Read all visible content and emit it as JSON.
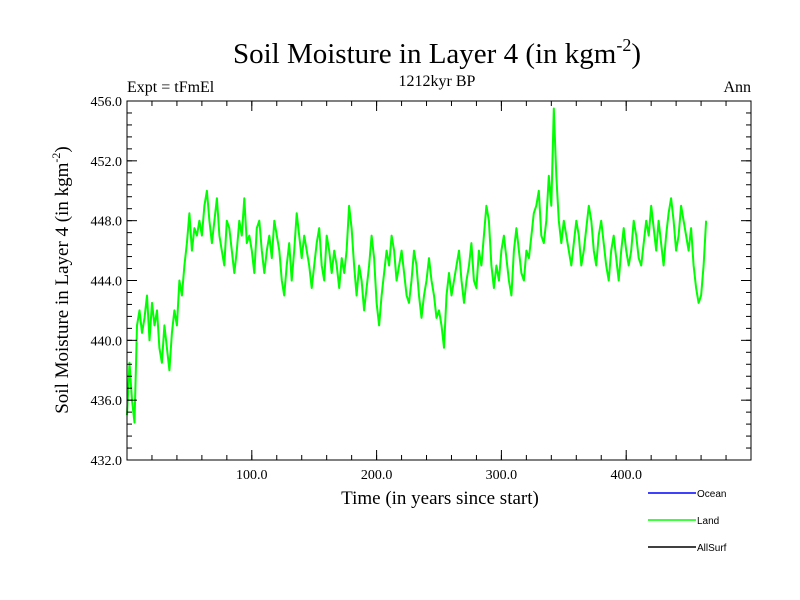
{
  "chart_data": {
    "type": "line",
    "title": "Soil Moisture in Layer 4 (in kgm",
    "title_sup": "-2",
    "title_close": ")",
    "subtitle": "1212kyr BP",
    "left_label": "Expt = tFmEl",
    "right_label": "Ann",
    "xlabel": "Time (in years since start)",
    "ylabel": "Soil Moisture in Layer 4 (in kgm",
    "ylabel_sup": "-2",
    "ylabel_close": ")",
    "xlim": [
      0,
      500
    ],
    "ylim": [
      432,
      456
    ],
    "x_ticks": [
      100,
      200,
      300,
      400
    ],
    "x_tick_labels": [
      "100.0",
      "200.0",
      "300.0",
      "400.0"
    ],
    "y_ticks": [
      432,
      436,
      440,
      444,
      448,
      452,
      456
    ],
    "y_tick_labels": [
      "432.0",
      "436.0",
      "440.0",
      "444.0",
      "448.0",
      "452.0",
      "456.0"
    ],
    "legend": [
      {
        "name": "Ocean",
        "color": "#0000ff"
      },
      {
        "name": "Land",
        "color": "#00ff00"
      },
      {
        "name": "AllSurf",
        "color": "#000000"
      }
    ],
    "series": [
      {
        "name": "Land",
        "color": "#00ff00",
        "x_start": 0,
        "x_step": 2,
        "values": [
          435.0,
          438.5,
          436.0,
          434.5,
          441.0,
          442.0,
          440.5,
          441.5,
          443.0,
          440.0,
          442.5,
          441.0,
          442.0,
          439.5,
          438.5,
          441.0,
          439.5,
          438.0,
          440.5,
          442.0,
          441.0,
          444.0,
          443.0,
          445.0,
          446.5,
          448.5,
          446.0,
          447.5,
          447.0,
          448.0,
          447.0,
          449.0,
          450.0,
          448.0,
          446.5,
          448.0,
          449.5,
          447.0,
          446.0,
          445.0,
          448.0,
          447.5,
          446.0,
          444.5,
          446.0,
          448.0,
          447.0,
          449.5,
          446.5,
          447.0,
          446.0,
          444.5,
          447.5,
          448.0,
          446.0,
          444.5,
          446.0,
          447.0,
          445.5,
          448.0,
          447.0,
          446.0,
          444.0,
          443.0,
          445.0,
          446.5,
          444.0,
          446.0,
          448.5,
          447.0,
          445.5,
          447.0,
          446.0,
          445.0,
          443.5,
          445.0,
          446.5,
          447.5,
          445.0,
          444.0,
          447.0,
          446.0,
          444.5,
          446.0,
          445.0,
          443.5,
          445.5,
          444.5,
          446.0,
          449.0,
          447.5,
          445.0,
          443.0,
          445.0,
          444.0,
          442.0,
          443.5,
          445.0,
          447.0,
          445.5,
          442.5,
          441.0,
          443.0,
          444.5,
          446.0,
          445.0,
          447.0,
          446.0,
          444.0,
          445.0,
          446.0,
          444.5,
          443.0,
          442.5,
          444.0,
          446.0,
          445.0,
          443.0,
          441.5,
          443.0,
          444.0,
          445.5,
          444.0,
          443.0,
          441.5,
          442.0,
          441.0,
          439.5,
          443.0,
          444.5,
          443.0,
          444.0,
          445.0,
          446.0,
          444.0,
          442.5,
          444.0,
          445.0,
          446.5,
          444.0,
          443.5,
          446.0,
          445.0,
          447.0,
          449.0,
          448.0,
          445.0,
          443.5,
          445.0,
          444.0,
          446.0,
          447.0,
          445.5,
          444.0,
          443.0,
          446.0,
          447.5,
          446.0,
          444.5,
          444.0,
          446.0,
          445.5,
          447.0,
          448.5,
          449.0,
          450.0,
          447.0,
          446.5,
          448.0,
          451.0,
          449.0,
          455.5,
          451.0,
          448.0,
          446.5,
          448.0,
          447.0,
          446.0,
          445.0,
          446.5,
          448.0,
          447.0,
          445.0,
          446.0,
          447.5,
          449.0,
          448.0,
          446.0,
          445.0,
          447.0,
          448.0,
          446.5,
          445.0,
          444.0,
          446.0,
          447.0,
          445.5,
          444.0,
          446.0,
          447.5,
          446.0,
          445.0,
          446.0,
          448.0,
          447.0,
          445.5,
          445.0,
          446.5,
          448.0,
          447.0,
          449.0,
          447.5,
          446.0,
          448.0,
          446.5,
          445.0,
          447.0,
          448.5,
          449.5,
          448.0,
          446.0,
          447.0,
          449.0,
          448.0,
          447.0,
          446.0,
          447.5,
          445.0,
          443.5,
          442.5,
          443.0,
          445.0,
          448.0
        ]
      }
    ]
  }
}
